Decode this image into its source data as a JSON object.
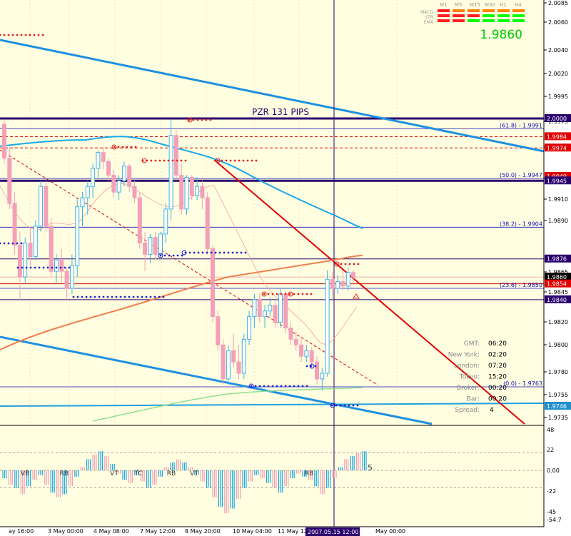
{
  "chart_data": {
    "type": "candlestick",
    "title": "PZR 131 PIPS",
    "current_price": "1.9860",
    "y_ticks": [
      "2.0085",
      "2.0060",
      "2.0040",
      "2.0020",
      "1.9995",
      "1.9975",
      "1.9950",
      "1.9930",
      "1.9910",
      "1.9890",
      "1.9865",
      "1.9845",
      "1.9820",
      "1.9800",
      "1.9780",
      "1.9755",
      "1.9735"
    ],
    "x_ticks": [
      {
        "label": "ay 16:00",
        "x": 12
      },
      {
        "label": "3 May 00:00",
        "x": 67
      },
      {
        "label": "4 May 08:00",
        "x": 131
      },
      {
        "label": "7 May 12:00",
        "x": 196
      },
      {
        "label": "8 May 20:00",
        "x": 259
      },
      {
        "label": "10 May 04:00",
        "x": 326
      },
      {
        "label": "11 May 12:00",
        "x": 389
      },
      {
        "label": "May 00:00",
        "x": 526
      }
    ],
    "cursor_time": "2007.05.15 12:00",
    "price_labels": [
      {
        "text": "2.0000",
        "price": 2.0,
        "color": "#2a006e"
      },
      {
        "text": "1.9984",
        "price": 1.9984,
        "color": "#e00000"
      },
      {
        "text": "1.9974",
        "price": 1.9974,
        "color": "#e00000"
      },
      {
        "text": "1.9949",
        "price": 1.9949,
        "color": "#e00000"
      },
      {
        "text": "1.9945",
        "price": 1.9945,
        "color": "#2a006e"
      },
      {
        "text": "1.9876",
        "price": 1.9876,
        "color": "#2a006e"
      },
      {
        "text": "1.9860",
        "price": 1.986,
        "color": "#000000"
      },
      {
        "text": "1.9854",
        "price": 1.9854,
        "color": "#e00000"
      },
      {
        "text": "1.9840",
        "price": 1.984,
        "color": "#2a006e"
      },
      {
        "text": "1.9746",
        "price": 1.9746,
        "color": "#1e90d0"
      }
    ],
    "fib_levels": [
      {
        "label": "(61.8) - 1.9991",
        "price": 1.9991
      },
      {
        "label": "(50.0) - 1.9947",
        "price": 1.9947
      },
      {
        "label": "(38.2) - 1.9904",
        "price": 1.9904
      },
      {
        "label": "(23.6) - 1.9850",
        "price": 1.985
      },
      {
        "label": "(0.0) - 1.9763",
        "price": 1.9763
      }
    ],
    "candles": [
      [
        1.9995,
        1.9999,
        1.996,
        1.9965
      ],
      [
        1.9965,
        1.9975,
        1.992,
        1.9925
      ],
      [
        1.9925,
        1.9935,
        1.988,
        1.9888
      ],
      [
        1.9888,
        1.99,
        1.984,
        1.986
      ],
      [
        1.986,
        1.9895,
        1.9855,
        1.989
      ],
      [
        1.989,
        1.9905,
        1.987,
        1.9878
      ],
      [
        1.9878,
        1.991,
        1.9875,
        1.9905
      ],
      [
        1.9905,
        1.9945,
        1.99,
        1.994
      ],
      [
        1.994,
        1.9945,
        1.99,
        1.9905
      ],
      [
        1.9905,
        1.9912,
        1.986,
        1.9865
      ],
      [
        1.9865,
        1.988,
        1.9855,
        1.9875
      ],
      [
        1.9875,
        1.9885,
        1.9855,
        1.9865
      ],
      [
        1.9865,
        1.9868,
        1.984,
        1.985
      ],
      [
        1.985,
        1.988,
        1.9845,
        1.987
      ],
      [
        1.987,
        1.993,
        1.986,
        1.9922
      ],
      [
        1.9922,
        1.9935,
        1.9905,
        1.993
      ],
      [
        1.993,
        1.9945,
        1.9915,
        1.994
      ],
      [
        1.994,
        1.996,
        1.993,
        1.9956
      ],
      [
        1.9956,
        1.9972,
        1.9948,
        1.997
      ],
      [
        1.997,
        1.9975,
        1.9955,
        1.9962
      ],
      [
        1.9962,
        1.9965,
        1.9945,
        1.995
      ],
      [
        1.995,
        1.9955,
        1.993,
        1.9935
      ],
      [
        1.9935,
        1.995,
        1.9928,
        1.9945
      ],
      [
        1.9945,
        1.9962,
        1.994,
        1.9958
      ],
      [
        1.9958,
        1.996,
        1.9935,
        1.994
      ],
      [
        1.994,
        1.9945,
        1.9925,
        1.993
      ],
      [
        1.993,
        1.9935,
        1.9885,
        1.989
      ],
      [
        1.989,
        1.99,
        1.9865,
        1.988
      ],
      [
        1.988,
        1.9898,
        1.9872,
        1.9895
      ],
      [
        1.9895,
        1.99,
        1.9875,
        1.988
      ],
      [
        1.988,
        1.99,
        1.9878,
        1.9898
      ],
      [
        1.9898,
        1.9925,
        1.989,
        1.992
      ],
      [
        1.992,
        1.9999,
        1.991,
        1.9985
      ],
      [
        1.9985,
        1.999,
        1.9945,
        1.995
      ],
      [
        1.995,
        1.996,
        1.9915,
        1.992
      ],
      [
        1.992,
        1.995,
        1.9915,
        1.9948
      ],
      [
        1.9948,
        1.995,
        1.9928,
        1.9932
      ],
      [
        1.9932,
        1.9948,
        1.9928,
        1.994
      ],
      [
        1.994,
        1.9945,
        1.992,
        1.993
      ],
      [
        1.993,
        1.9935,
        1.988,
        1.9885
      ],
      [
        1.9885,
        1.9888,
        1.982,
        1.9825
      ],
      [
        1.9825,
        1.983,
        1.9795,
        1.98
      ],
      [
        1.98,
        1.9805,
        1.9765,
        1.977
      ],
      [
        1.977,
        1.98,
        1.9765,
        1.9795
      ],
      [
        1.9795,
        1.981,
        1.978,
        1.9785
      ],
      [
        1.9785,
        1.98,
        1.977,
        1.9775
      ],
      [
        1.9775,
        1.981,
        1.977,
        1.9805
      ],
      [
        1.9805,
        1.983,
        1.98,
        1.9825
      ],
      [
        1.9825,
        1.9845,
        1.9815,
        1.984
      ],
      [
        1.984,
        1.9845,
        1.982,
        1.9825
      ],
      [
        1.9825,
        1.9835,
        1.9815,
        1.983
      ],
      [
        1.983,
        1.9842,
        1.9825,
        1.9835
      ],
      [
        1.9835,
        1.984,
        1.9815,
        1.982
      ],
      [
        1.982,
        1.985,
        1.9815,
        1.9845
      ],
      [
        1.9845,
        1.9848,
        1.981,
        1.9815
      ],
      [
        1.9815,
        1.982,
        1.98,
        1.9805
      ],
      [
        1.9805,
        1.9812,
        1.9795,
        1.98
      ],
      [
        1.98,
        1.9805,
        1.9785,
        1.979
      ],
      [
        1.979,
        1.98,
        1.9785,
        1.9795
      ],
      [
        1.9795,
        1.9798,
        1.978,
        1.9785
      ],
      [
        1.9785,
        1.979,
        1.9765,
        1.977
      ],
      [
        1.977,
        1.978,
        1.976,
        1.9775
      ],
      [
        1.9775,
        1.9866,
        1.9772,
        1.9858
      ],
      [
        1.9858,
        1.9864,
        1.984,
        1.985
      ],
      [
        1.985,
        1.9862,
        1.9845,
        1.9856
      ],
      [
        1.9856,
        1.9866,
        1.9848,
        1.9852
      ],
      [
        1.9852,
        1.9868,
        1.9848,
        1.9864
      ],
      [
        1.9864,
        1.9866,
        1.9855,
        1.986
      ]
    ],
    "indicator": {
      "ticks": [
        "48",
        "22",
        "0.00",
        "-22",
        "-45",
        "-54.7"
      ],
      "value_label": "5",
      "pattern_labels": [
        "VB",
        "RB",
        "VT",
        "TC",
        "RB",
        "VT",
        "RB",
        "RB"
      ],
      "values": [
        -10,
        -18,
        -22,
        -30,
        -20,
        -12,
        -6,
        -18,
        -28,
        -34,
        -30,
        -20,
        -8,
        4,
        14,
        20,
        24,
        18,
        8,
        -4,
        -12,
        -16,
        -6,
        -14,
        -22,
        -18,
        -8,
        4,
        10,
        14,
        10,
        4,
        -6,
        -14,
        -22,
        -34,
        -46,
        -54,
        -48,
        -36,
        -22,
        -14,
        -6,
        -10,
        -16,
        -22,
        -28,
        -20,
        -10,
        -4,
        -8,
        -12,
        -20,
        -30,
        -22,
        -10,
        4,
        14,
        18,
        22,
        24
      ]
    }
  },
  "indicator_panel": {
    "timeframes": [
      "M1",
      "M5",
      "M15",
      "M30",
      "H1",
      "H4"
    ],
    "rows": [
      "MACD",
      "STR",
      "EMA"
    ],
    "colors": [
      [
        "#ff2020",
        "#ff8000",
        "#ff8000",
        "#ff8000",
        "#ff8000",
        "#ff8000"
      ],
      [
        "#ff2020",
        "#ff2020",
        "#ff2020",
        "#00ff00",
        "#00ff00",
        "#00ff00"
      ],
      [
        "#ff2020",
        "#ff2020",
        "#00ff00",
        "#00ff00",
        "#00ff00",
        "#00ff00"
      ]
    ],
    "price": "1.9860"
  },
  "info": [
    {
      "key": "GMT:",
      "value": "06:20"
    },
    {
      "key": "New York:",
      "value": "02:20"
    },
    {
      "key": "London:",
      "value": "07:20"
    },
    {
      "key": "Tokyo:",
      "value": "15:20"
    },
    {
      "key": "Broker:",
      "value": "00:20"
    },
    {
      "key": "Bar:",
      "value": "00:20"
    },
    {
      "key": "Spread:",
      "value": "4"
    }
  ]
}
